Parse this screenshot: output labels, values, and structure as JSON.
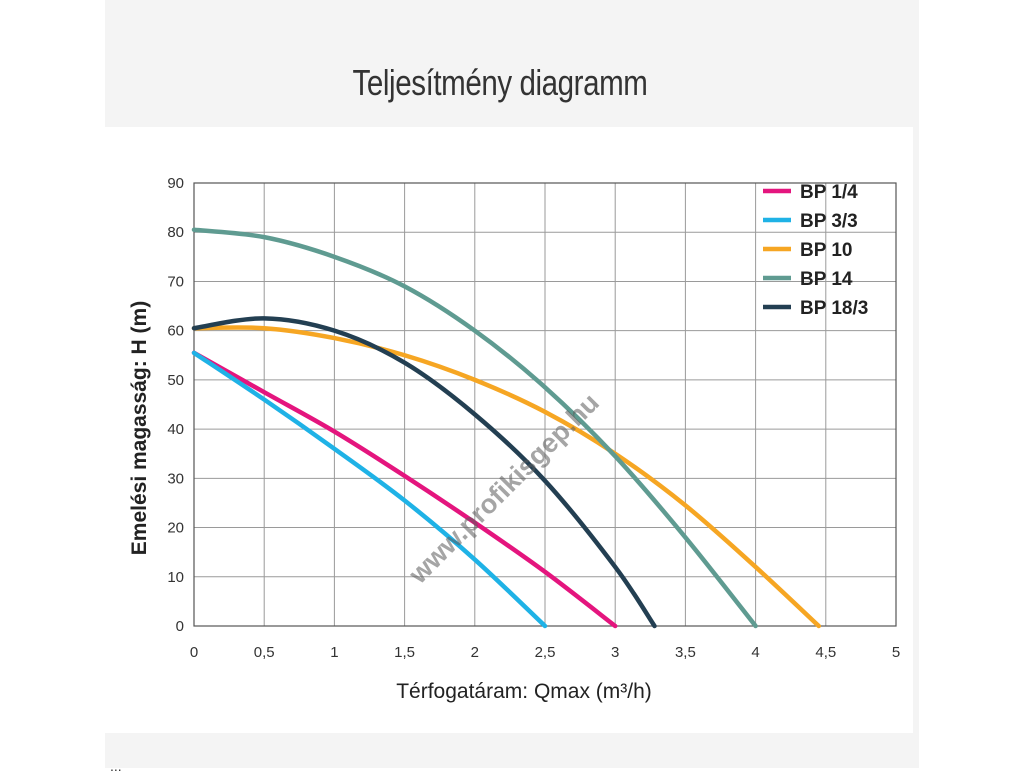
{
  "page": {
    "heading": "Teljesítmény diagramm",
    "watermark": "www.profikisgep.hu"
  },
  "chart_data": {
    "type": "line",
    "title": "",
    "xlabel": "Térfogatáram: Qmax (m³/h)",
    "ylabel": "Emelési magasság: H (m)",
    "xlim": [
      0,
      5
    ],
    "ylim": [
      0,
      90
    ],
    "x_ticks": [
      "0",
      "0,5",
      "1",
      "1,5",
      "2",
      "2,5",
      "3",
      "3,5",
      "4",
      "4,5",
      "5"
    ],
    "y_ticks": [
      "0",
      "10",
      "20",
      "30",
      "40",
      "50",
      "60",
      "70",
      "80",
      "90"
    ],
    "grid": true,
    "legend_position": "top-right",
    "series": [
      {
        "name": "BP 1/4",
        "color": "#e4157e",
        "points": [
          [
            0,
            55.5
          ],
          [
            0.5,
            47.5
          ],
          [
            1,
            39.5
          ],
          [
            1.5,
            30.5
          ],
          [
            2,
            21
          ],
          [
            2.5,
            11
          ],
          [
            3,
            0
          ]
        ]
      },
      {
        "name": "BP 3/3",
        "color": "#1fb2e6",
        "points": [
          [
            0,
            55.5
          ],
          [
            0.5,
            46
          ],
          [
            1,
            36
          ],
          [
            1.5,
            25.5
          ],
          [
            2,
            13.5
          ],
          [
            2.5,
            0
          ]
        ]
      },
      {
        "name": "BP 10",
        "color": "#f6a623",
        "points": [
          [
            0,
            60.5
          ],
          [
            0.5,
            60.5
          ],
          [
            1,
            58.5
          ],
          [
            1.5,
            55
          ],
          [
            2,
            50
          ],
          [
            2.5,
            43.5
          ],
          [
            3,
            35
          ],
          [
            3.5,
            24.5
          ],
          [
            4,
            12
          ],
          [
            4.45,
            0
          ]
        ]
      },
      {
        "name": "BP 14",
        "color": "#5f9b91",
        "points": [
          [
            0,
            80.5
          ],
          [
            0.5,
            79
          ],
          [
            1,
            75
          ],
          [
            1.5,
            69
          ],
          [
            2,
            60
          ],
          [
            2.5,
            48.5
          ],
          [
            3,
            34.5
          ],
          [
            3.5,
            18
          ],
          [
            4,
            0
          ]
        ]
      },
      {
        "name": "BP 18/3",
        "color": "#233f52",
        "points": [
          [
            0,
            60.5
          ],
          [
            0.5,
            62.5
          ],
          [
            1,
            60
          ],
          [
            1.5,
            53.5
          ],
          [
            2,
            43
          ],
          [
            2.5,
            29.5
          ],
          [
            3,
            12
          ],
          [
            3.28,
            0
          ]
        ]
      }
    ]
  }
}
